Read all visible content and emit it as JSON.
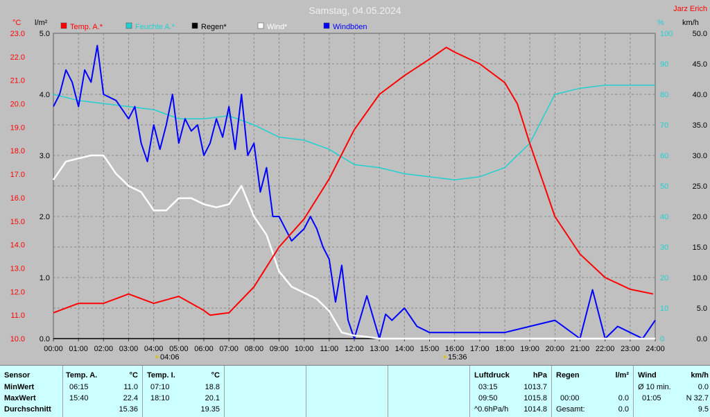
{
  "title": "Samstag, 04.05.2024",
  "station": "Jarz Erich",
  "colors": {
    "temp": "#ff0000",
    "tempIn": "#20d0d0",
    "rain": "#000000",
    "wind": "#ffffff",
    "gust": "#0000ff",
    "bg": "#c0c0c0",
    "grid": "#808080"
  },
  "legend": [
    {
      "label": "Temp. A.*",
      "color": "#ff0000"
    },
    {
      "label": "Feuchte A.*",
      "color": "#20d0d0"
    },
    {
      "label": "Regen*",
      "color": "#000000"
    },
    {
      "label": "Wind*",
      "color": "#ffffff"
    },
    {
      "label": "Windböen",
      "color": "#0000ff"
    }
  ],
  "axes": {
    "temp_unit": "°C",
    "rain_unit": "l/m²",
    "hum_unit": "%",
    "wind_unit": "km/h",
    "temp_ticks": [
      "23.0",
      "22.0",
      "21.0",
      "20.0",
      "19.0",
      "18.0",
      "17.0",
      "16.0",
      "15.0",
      "14.0",
      "13.0",
      "12.0",
      "11.0",
      "10.0"
    ],
    "rain_ticks": [
      "5.0",
      "4.0",
      "3.0",
      "2.0",
      "1.0",
      "0.0"
    ],
    "hum_ticks": [
      "100",
      "90",
      "80",
      "70",
      "60",
      "50",
      "40",
      "30",
      "20",
      "10",
      "0"
    ],
    "wind_ticks": [
      "50.0",
      "45.0",
      "40.0",
      "35.0",
      "30.0",
      "25.0",
      "20.0",
      "15.0",
      "10.0",
      "5.0",
      "0.0"
    ],
    "x_ticks": [
      "00:00",
      "01:00",
      "02:00",
      "03:00",
      "04:00",
      "05:00",
      "06:00",
      "07:00",
      "08:00",
      "09:00",
      "10:00",
      "11:00",
      "12:00",
      "13:00",
      "14:00",
      "15:00",
      "16:00",
      "17:00",
      "18:00",
      "19:00",
      "20:00",
      "21:00",
      "22:00",
      "23:00",
      "24:00"
    ],
    "sunrise": "04:06",
    "sunset": "15:36"
  },
  "chart_data": {
    "type": "line",
    "x_range": [
      "00:00",
      "24:00"
    ],
    "ylim_temp": [
      10,
      23
    ],
    "ylim_rain": [
      0,
      5
    ],
    "ylim_hum": [
      0,
      100
    ],
    "ylim_wind": [
      0,
      50
    ],
    "series": [
      {
        "name": "Temp. A.*",
        "axis": "temp",
        "x": [
          "00:00",
          "01:00",
          "02:00",
          "03:00",
          "04:00",
          "05:00",
          "06:00",
          "06:15",
          "07:00",
          "08:00",
          "09:00",
          "10:00",
          "11:00",
          "12:00",
          "13:00",
          "14:00",
          "15:00",
          "15:40",
          "16:00",
          "17:00",
          "18:00",
          "18:30",
          "19:00",
          "20:00",
          "21:00",
          "22:00",
          "23:00",
          "23:55"
        ],
        "y": [
          11.1,
          11.5,
          11.5,
          11.9,
          11.5,
          11.8,
          11.2,
          11.0,
          11.1,
          12.2,
          13.9,
          15.1,
          16.8,
          18.9,
          20.4,
          21.2,
          21.9,
          22.4,
          22.2,
          21.7,
          20.9,
          20.0,
          18.3,
          15.2,
          13.6,
          12.6,
          12.1,
          11.9
        ]
      },
      {
        "name": "Feuchte A.*",
        "axis": "hum",
        "x": [
          "00:00",
          "01:00",
          "02:00",
          "03:00",
          "04:00",
          "05:00",
          "06:00",
          "07:00",
          "08:00",
          "09:00",
          "10:00",
          "11:00",
          "12:00",
          "13:00",
          "14:00",
          "15:00",
          "16:00",
          "17:00",
          "18:00",
          "19:00",
          "20:00",
          "21:00",
          "22:00",
          "23:00",
          "24:00"
        ],
        "y": [
          80,
          78,
          77,
          76,
          75,
          72,
          72,
          73,
          70,
          66,
          65,
          62,
          57,
          56,
          54,
          53,
          52,
          53,
          56,
          64,
          80,
          82,
          83,
          83,
          83
        ]
      },
      {
        "name": "Wind*",
        "axis": "wind",
        "x": [
          "00:00",
          "00:30",
          "01:00",
          "01:30",
          "02:00",
          "02:30",
          "03:00",
          "03:30",
          "04:00",
          "04:30",
          "05:00",
          "05:30",
          "06:00",
          "06:30",
          "07:00",
          "07:30",
          "08:00",
          "08:30",
          "09:00",
          "09:30",
          "10:00",
          "10:30",
          "11:00",
          "11:30",
          "12:00",
          "12:30",
          "13:00",
          "24:00"
        ],
        "y": [
          26.0,
          29.0,
          29.5,
          30.0,
          30.0,
          27.0,
          25.0,
          24.0,
          21.0,
          21.0,
          23.0,
          23.0,
          22.0,
          21.5,
          22.0,
          25.0,
          20.0,
          17.0,
          11.0,
          8.5,
          7.5,
          6.5,
          4.5,
          1.0,
          0.5,
          0.3,
          0.0,
          0.0
        ]
      },
      {
        "name": "Windböen",
        "axis": "wind",
        "x": [
          "00:00",
          "00:15",
          "00:30",
          "00:45",
          "01:00",
          "01:15",
          "01:30",
          "01:45",
          "02:00",
          "02:30",
          "03:00",
          "03:15",
          "03:30",
          "03:45",
          "04:00",
          "04:15",
          "04:30",
          "04:45",
          "05:00",
          "05:15",
          "05:30",
          "05:45",
          "06:00",
          "06:15",
          "06:30",
          "06:45",
          "07:00",
          "07:15",
          "07:30",
          "07:45",
          "08:00",
          "08:15",
          "08:30",
          "08:45",
          "09:00",
          "09:15",
          "09:30",
          "09:45",
          "10:00",
          "10:15",
          "10:30",
          "10:45",
          "11:00",
          "11:15",
          "11:30",
          "11:45",
          "12:00",
          "12:30",
          "13:00",
          "13:15",
          "13:30",
          "14:00",
          "14:30",
          "15:00",
          "18:00",
          "20:00",
          "21:00",
          "21:30",
          "22:00",
          "22:30",
          "23:00",
          "23:30",
          "24:00"
        ],
        "y": [
          38,
          40,
          44,
          42,
          38,
          44,
          42,
          48,
          40,
          39,
          36,
          38,
          32,
          29,
          35,
          31,
          35,
          40,
          32,
          36,
          34,
          35,
          30,
          32,
          36,
          33,
          38,
          31,
          40,
          30,
          32,
          24,
          28,
          20,
          20,
          18,
          16,
          17,
          18,
          20,
          18,
          15,
          13,
          6,
          12,
          3,
          0,
          7,
          0,
          4,
          3,
          5,
          2,
          1,
          1,
          3,
          0,
          8,
          0,
          2,
          1,
          0,
          3
        ]
      },
      {
        "name": "Regen*",
        "axis": "rain",
        "x": [
          "00:00",
          "24:00"
        ],
        "y": [
          0.0,
          0.0
        ]
      }
    ]
  },
  "table": {
    "rows": [
      "Sensor",
      "MinWert",
      "MaxWert",
      "Durchschnitt"
    ],
    "temp_a": {
      "header": "Temp. A.",
      "unit": "°C",
      "min_time": "06:15",
      "min": "11.0",
      "max_time": "15:40",
      "max": "22.4",
      "avg": "15.36"
    },
    "temp_i": {
      "header": "Temp. I.",
      "unit": "°C",
      "min_time": "07:10",
      "min": "18.8",
      "max_time": "18:10",
      "max": "20.1",
      "avg": "19.35"
    },
    "pressure": {
      "header": "Luftdruck",
      "unit": "hPa",
      "min_time": "03:15",
      "min": "1013.7",
      "max_time": "09:50",
      "max": "1015.8",
      "trend": "^0.6hPa/h",
      "avg": "1014.8"
    },
    "rain": {
      "header": "Regen",
      "unit": "l/m²",
      "max_time": "00:00",
      "max": "0.0",
      "total_label": "Gesamt:",
      "total": "0.0"
    },
    "wind": {
      "header": "Wind",
      "unit": "km/h",
      "avg_label": "Ø 10 min.",
      "avg": "0.0",
      "max_time": "01:05",
      "max": "N 32.7",
      "overall": "9.5"
    }
  }
}
